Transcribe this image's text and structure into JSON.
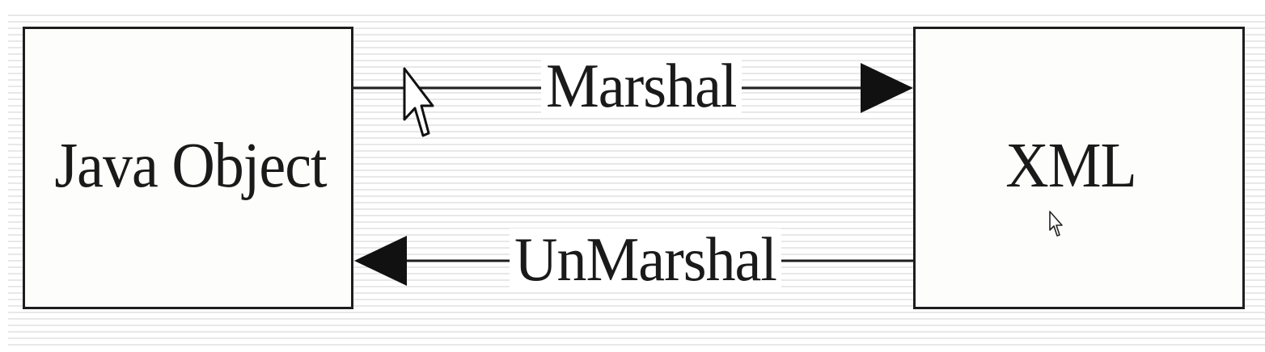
{
  "diagram": {
    "nodes": [
      {
        "id": "java",
        "label": "Java Object"
      },
      {
        "id": "xml",
        "label": "XML"
      }
    ],
    "edges": [
      {
        "from": "java",
        "to": "xml",
        "label": "Marshal"
      },
      {
        "from": "xml",
        "to": "java",
        "label": "UnMarshal"
      }
    ]
  },
  "colors": {
    "stroke": "#1e1e1e",
    "box_fill": "#fdfefc",
    "stripe": "#e8e8e8"
  },
  "icons": [
    "mouse-pointer-icon",
    "mouse-pointer-icon"
  ]
}
